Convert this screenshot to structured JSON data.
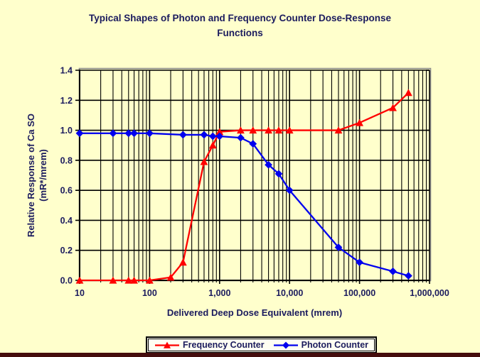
{
  "window": {
    "background": "#FFFFCC",
    "bottom_bar_color": "#450D0D"
  },
  "colors": {
    "text": "#1B1B5E",
    "grid": "#000000",
    "plot_border": "#8A8A8A",
    "legend_bg": "#FFFFF2",
    "legend_border": "#000000",
    "frequency_counter": "#FF0000",
    "photon_counter": "#0000EE"
  },
  "chart_data": {
    "type": "line",
    "title": "Typical Shapes of Photon and Frequency Counter Dose-Response Functions",
    "title_line1": "Typical Shapes of Photon and Frequency Counter Dose-Response",
    "title_line2": "Functions",
    "xlabel": "Delivered Deep Dose Equivalent (mrem)",
    "ylabel_line1": "Relative Response of Ca SO",
    "ylabel_line2": "(mR*/mrem)",
    "x_scale": "log",
    "xlim": [
      10,
      1000000
    ],
    "ylim": [
      0,
      1.4
    ],
    "grid": "major-and-minor-log-verticals, major-horizontals",
    "legend_position": "bottom-center",
    "x_ticks": {
      "values": [
        10,
        100,
        1000,
        10000,
        100000,
        1000000
      ],
      "labels": [
        "10",
        "100",
        "1,000",
        "10,000",
        "100,000",
        "1,000,000"
      ]
    },
    "y_ticks": {
      "values": [
        0,
        0.2,
        0.4,
        0.6,
        0.8,
        1.0,
        1.2,
        1.4
      ],
      "labels": [
        "0.0",
        "0.2",
        "0.4",
        "0.6",
        "0.8",
        "1.0",
        "1.2",
        "1.4"
      ]
    },
    "series": [
      {
        "name": "Frequency Counter",
        "color": "#FF0000",
        "marker": "triangle",
        "x": [
          10,
          30,
          50,
          60,
          100,
          200,
          300,
          600,
          800,
          1000,
          2000,
          3000,
          5000,
          7000,
          10000,
          50000,
          100000,
          300000,
          500000
        ],
        "y": [
          0,
          0,
          0,
          0,
          0,
          0.02,
          0.12,
          0.79,
          0.9,
          0.99,
          1.0,
          1.0,
          1.0,
          1.0,
          1.0,
          1.0,
          1.05,
          1.15,
          1.25
        ]
      },
      {
        "name": "Photon Counter",
        "color": "#0000EE",
        "marker": "diamond",
        "x": [
          10,
          30,
          50,
          60,
          100,
          300,
          600,
          800,
          1000,
          2000,
          3000,
          5000,
          7000,
          10000,
          50000,
          100000,
          300000,
          500000
        ],
        "y": [
          0.98,
          0.98,
          0.98,
          0.98,
          0.98,
          0.97,
          0.97,
          0.96,
          0.96,
          0.95,
          0.91,
          0.77,
          0.71,
          0.6,
          0.22,
          0.12,
          0.06,
          0.03
        ]
      }
    ]
  }
}
